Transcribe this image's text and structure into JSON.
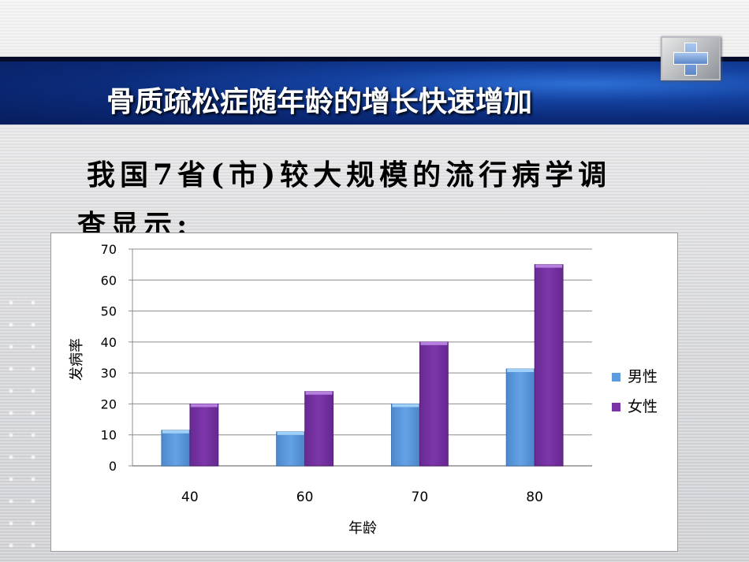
{
  "slide": {
    "title": "骨质疏松症随年龄的增长快速增加",
    "body_line1": "我国7省(市)较大规模的流行病学调",
    "body_line2": "查显示:",
    "logo_icon": "medical-cross-icon"
  },
  "chart_data": {
    "type": "bar",
    "categories": [
      "40",
      "60",
      "70",
      "80"
    ],
    "series": [
      {
        "name": "男性",
        "values": [
          11.5,
          11,
          20,
          31.3
        ],
        "color": "#5b9bde"
      },
      {
        "name": "女性",
        "values": [
          20,
          24,
          40,
          65
        ],
        "color": "#7a33a6"
      }
    ],
    "xlabel": "年龄",
    "ylabel": "发病率",
    "ylim": [
      0,
      70
    ],
    "yticks": [
      "0",
      "10",
      "20",
      "30",
      "40",
      "50",
      "60",
      "70"
    ],
    "grid": true,
    "legend": "right"
  }
}
